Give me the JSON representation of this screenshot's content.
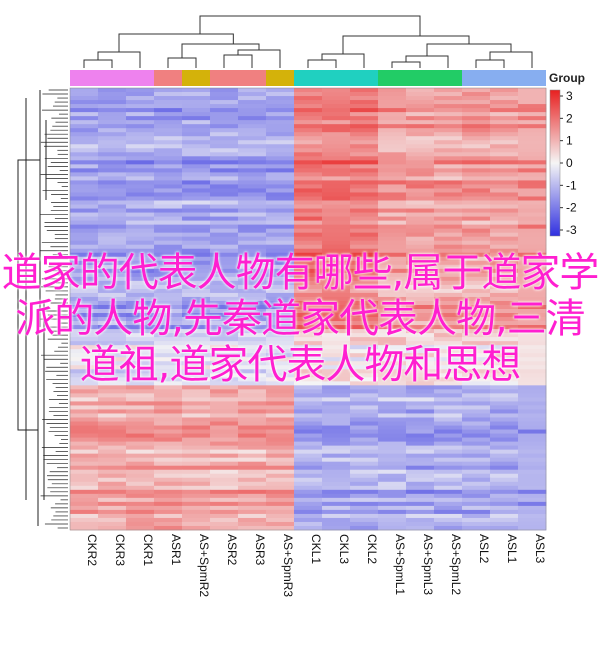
{
  "overlay": {
    "title": "道家的代表人物有哪些,属于道家学派的人物,先秦道家代表人物,三清道祖,道家代表人物和思想"
  },
  "chart_data": {
    "type": "heatmap",
    "columns": [
      "CKR2",
      "CKR3",
      "CKR1",
      "ASR1",
      "AS+SpmR2",
      "ASR2",
      "ASR3",
      "AS+SpmR3",
      "CKL1",
      "CKL3",
      "CKL2",
      "AS+SpmL1",
      "AS+SpmL3",
      "AS+SpmL2",
      "ASL2",
      "ASL1",
      "ASL3"
    ],
    "group_legend_title": "Group",
    "groups": [
      {
        "color": "#ee82ee",
        "columns": [
          "CKR2",
          "CKR3",
          "CKR1"
        ]
      },
      {
        "color": "#f08080",
        "columns": [
          "ASR1"
        ]
      },
      {
        "color": "#d4b20a",
        "columns": [
          "AS+SpmR2"
        ]
      },
      {
        "color": "#f08080",
        "columns": [
          "ASR2",
          "ASR3"
        ]
      },
      {
        "color": "#d4b20a",
        "columns": [
          "AS+SpmR3"
        ]
      },
      {
        "color": "#20d0c0",
        "columns": [
          "CKL1",
          "CKL3",
          "CKL2"
        ]
      },
      {
        "color": "#22cc66",
        "columns": [
          "AS+SpmL1",
          "AS+SpmL3",
          "AS+SpmL2"
        ]
      },
      {
        "color": "#87aef0",
        "columns": [
          "ASL2",
          "ASL1",
          "ASL3"
        ]
      }
    ],
    "colorbar": {
      "ticks": [
        3,
        2,
        1,
        0,
        -1,
        -2,
        -3
      ],
      "low": "#3030e0",
      "mid": "#f5f5f5",
      "high": "#e82020"
    },
    "blocks": [
      {
        "rows": "top",
        "left_cols": 8,
        "left_value": -1.2,
        "right_value": 1.2
      },
      {
        "rows": "middle",
        "left_cols": 8,
        "left_value": -0.3,
        "right_value": 0.3
      },
      {
        "rows": "bottom",
        "left_cols": 8,
        "left_value": 1.1,
        "right_value": -1.1
      }
    ]
  }
}
